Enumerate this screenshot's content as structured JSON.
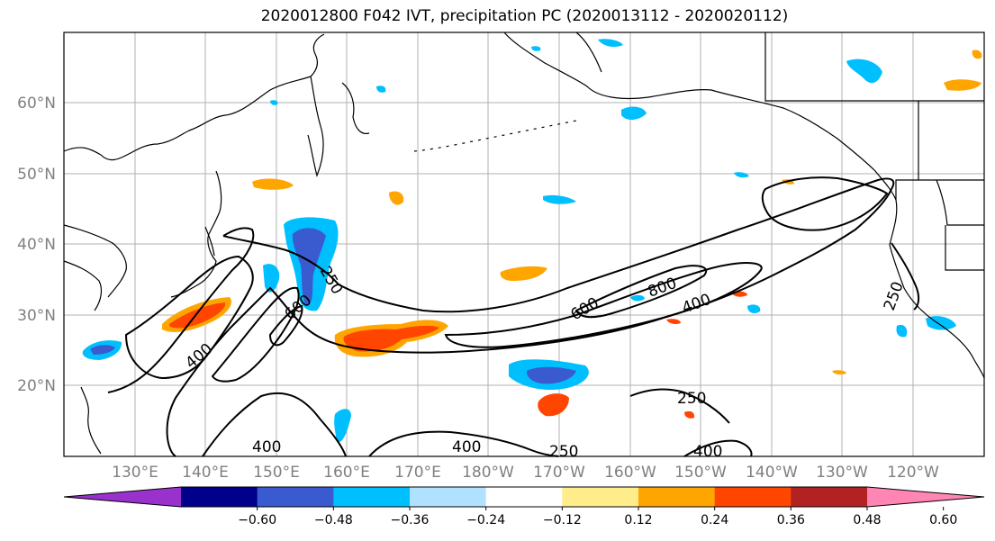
{
  "title": "2020012800 F042 IVT, precipitation PC (2020013112 - 2020020112)",
  "map": {
    "lon_labels": [
      "130°E",
      "140°E",
      "150°E",
      "160°E",
      "170°E",
      "180°W",
      "170°W",
      "160°W",
      "150°W",
      "140°W",
      "130°W",
      "120°W"
    ],
    "lat_labels": [
      "60°N",
      "50°N",
      "40°N",
      "30°N",
      "20°N"
    ],
    "ivt_contour_labels": [
      "250",
      "600",
      "400",
      "600",
      "800",
      "400",
      "250",
      "400",
      "400",
      "250",
      "400",
      "250"
    ]
  },
  "colorbar": {
    "colors": [
      "#9932cc",
      "#00008b",
      "#3a5bd0",
      "#00bfff",
      "#b0e2ff",
      "#ffffff",
      "#ffec8b",
      "#ffa500",
      "#ff4500",
      "#b22222",
      "#ff86b4"
    ],
    "tick_labels": [
      "−0.60",
      "−0.48",
      "−0.36",
      "−0.24",
      "−0.12",
      "0.12",
      "0.24",
      "0.36",
      "0.48",
      "0.60"
    ]
  }
}
